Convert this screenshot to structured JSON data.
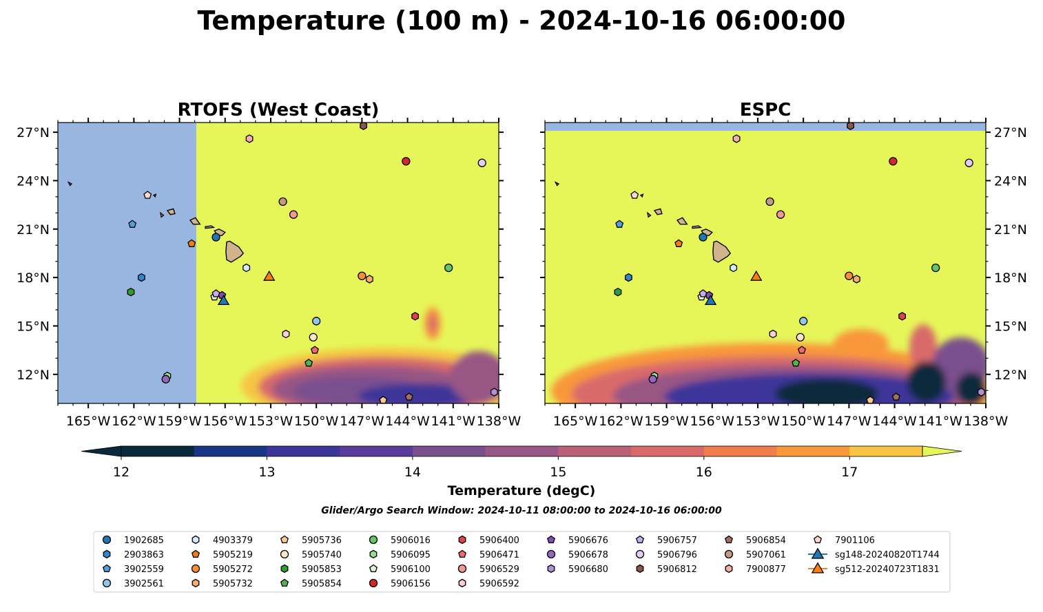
{
  "figure": {
    "title": "Temperature (100 m) - 2024-10-16 06:00:00",
    "search_window": "Glider/Argo Search Window: 2024-10-11 08:00:00 to 2024-10-16 06:00:00"
  },
  "colorbar": {
    "label": "Temperature (degC)",
    "levels": [
      12,
      12.5,
      13,
      13.5,
      14,
      14.5,
      15,
      15.5,
      16,
      16.5,
      17,
      17.5
    ],
    "colors": [
      "#092a3c",
      "#173686",
      "#3c3699",
      "#5a3d9a",
      "#7a4f8e",
      "#985784",
      "#bb6079",
      "#d86a6a",
      "#f07d4d",
      "#f9973b",
      "#f7c443",
      "#e6f659"
    ],
    "ticks": [
      "12",
      "13",
      "14",
      "15",
      "16",
      "17"
    ]
  },
  "colors": {
    "land": "#d2b48c",
    "nodata": "#98b6e0",
    "warm": "#e6f659"
  },
  "chart_data": [
    {
      "type": "heatmap",
      "panel": "left",
      "title": "RTOFS (West Coast)",
      "xlim": [
        -167,
        -138
      ],
      "ylim": [
        10.2,
        27.6
      ],
      "xticks": [
        "165°W",
        "162°W",
        "159°W",
        "156°W",
        "153°W",
        "150°W",
        "147°W",
        "144°W",
        "141°W",
        "138°W"
      ],
      "yticks": [
        "27°N",
        "24°N",
        "21°N",
        "18°N",
        "15°N",
        "12°N"
      ],
      "no_data_region": {
        "lon_max": -157.9
      },
      "cold_region": "south-east, below about 14°N"
    },
    {
      "type": "heatmap",
      "panel": "right",
      "title": "ESPC",
      "xlim": [
        -167,
        -138
      ],
      "ylim": [
        10.2,
        27.6
      ],
      "xticks": [
        "165°W",
        "162°W",
        "159°W",
        "156°W",
        "153°W",
        "150°W",
        "147°W",
        "144°W",
        "141°W",
        "138°W"
      ],
      "yticks": [
        "27°N",
        "24°N",
        "21°N",
        "18°N",
        "15°N",
        "12°N"
      ],
      "no_data_region": {
        "lat_min": 27.1
      },
      "cold_region": "south, below about 15°N"
    }
  ],
  "platforms": [
    {
      "id": "1902685",
      "marker": "circle",
      "color": "#1f77b4",
      "lon": -156.6,
      "lat": 20.5
    },
    {
      "id": "2903863",
      "marker": "hexagon",
      "color": "#2f86c8",
      "lon": -161.5,
      "lat": 18.0
    },
    {
      "id": "3902559",
      "marker": "pentagon",
      "color": "#4f9fdc",
      "lon": -162.1,
      "lat": 21.3
    },
    {
      "id": "3902561",
      "marker": "circle",
      "color": "#8fc8ec",
      "lon": -150.0,
      "lat": 15.3
    },
    {
      "id": "4903379",
      "marker": "hexagon",
      "color": "#d6ecf9",
      "lon": -154.6,
      "lat": 18.6
    },
    {
      "id": "5905219",
      "marker": "pentagon",
      "color": "#f57f0e",
      "lon": -158.2,
      "lat": 20.1
    },
    {
      "id": "5905272",
      "marker": "circle",
      "color": "#fb8f34",
      "lon": -147.0,
      "lat": 18.1
    },
    {
      "id": "5905732",
      "marker": "hexagon",
      "color": "#fbad6a",
      "lon": -146.5,
      "lat": 17.9
    },
    {
      "id": "5905736",
      "marker": "pentagon",
      "color": "#fdca8c",
      "lon": -145.6,
      "lat": 10.4
    },
    {
      "id": "5905740",
      "marker": "circle",
      "color": "#fde3c8",
      "lon": -150.2,
      "lat": 14.3
    },
    {
      "id": "5905853",
      "marker": "hexagon",
      "color": "#2ca02c",
      "lon": -162.2,
      "lat": 17.1
    },
    {
      "id": "5905854",
      "marker": "pentagon",
      "color": "#4cb84c",
      "lon": -150.5,
      "lat": 12.7
    },
    {
      "id": "5906016",
      "marker": "circle",
      "color": "#67c467",
      "lon": -141.3,
      "lat": 18.6
    },
    {
      "id": "5906095",
      "marker": "hexagon",
      "color": "#98df8a",
      "lon": -159.8,
      "lat": 11.9
    },
    {
      "id": "5906100",
      "marker": "pentagon",
      "color": "#d8f6cf",
      "lon": -156.7,
      "lat": 16.8
    },
    {
      "id": "5906156",
      "marker": "circle",
      "color": "#d62728",
      "lon": -144.1,
      "lat": 25.2
    },
    {
      "id": "5906400",
      "marker": "hexagon",
      "color": "#e0424a",
      "lon": -143.5,
      "lat": 15.6
    },
    {
      "id": "5906471",
      "marker": "pentagon",
      "color": "#ee6a6a",
      "lon": -150.1,
      "lat": 13.5
    },
    {
      "id": "5906529",
      "marker": "circle",
      "color": "#f49797",
      "lon": -151.5,
      "lat": 21.9
    },
    {
      "id": "5906592",
      "marker": "hexagon",
      "color": "#fcd0cf",
      "lon": -152.0,
      "lat": 14.5
    },
    {
      "id": "5906676",
      "marker": "pentagon",
      "color": "#7e4fb0",
      "lon": -156.2,
      "lat": 16.9
    },
    {
      "id": "5906678",
      "marker": "circle",
      "color": "#9467bd",
      "lon": -159.9,
      "lat": 11.7
    },
    {
      "id": "5906680",
      "marker": "hexagon",
      "color": "#b190d6",
      "lon": -138.3,
      "lat": 10.9
    },
    {
      "id": "5906757",
      "marker": "pentagon",
      "color": "#c9acec",
      "lon": -156.6,
      "lat": 17.0
    },
    {
      "id": "5906796",
      "marker": "circle",
      "color": "#e3cdf7",
      "lon": -139.1,
      "lat": 25.1
    },
    {
      "id": "5906812",
      "marker": "hexagon",
      "color": "#8c564b",
      "lon": -146.9,
      "lat": 27.4
    },
    {
      "id": "5906854",
      "marker": "pentagon",
      "color": "#a3705f",
      "lon": -143.9,
      "lat": 10.6
    },
    {
      "id": "5907061",
      "marker": "circle",
      "color": "#c49a86",
      "lon": -152.2,
      "lat": 22.7
    },
    {
      "id": "7900877",
      "marker": "hexagon",
      "color": "#f2b0a6",
      "lon": -154.4,
      "lat": 26.6
    },
    {
      "id": "7901106",
      "marker": "pentagon",
      "color": "#fcd6cf",
      "lon": -161.1,
      "lat": 23.1
    },
    {
      "id": "sg148-20240820T1744",
      "marker": "triangle",
      "color": "#1f77b4",
      "lon": -156.1,
      "lat": 16.6
    },
    {
      "id": "sg512-20240723T1831",
      "marker": "triangle",
      "color": "#ff7f0e",
      "lon": -153.1,
      "lat": 18.1
    }
  ],
  "islands": [
    [
      [
        -155.9,
        20.2
      ],
      [
        -155.7,
        20.25
      ],
      [
        -155.1,
        19.9
      ],
      [
        -154.8,
        19.5
      ],
      [
        -155.0,
        19.3
      ],
      [
        -155.6,
        18.95
      ],
      [
        -155.9,
        19.1
      ],
      [
        -155.95,
        19.6
      ],
      [
        -155.9,
        20.2
      ]
    ],
    [
      [
        -156.7,
        20.9
      ],
      [
        -156.4,
        21.0
      ],
      [
        -156.0,
        20.8
      ],
      [
        -156.2,
        20.6
      ],
      [
        -156.5,
        20.6
      ],
      [
        -156.7,
        20.9
      ]
    ],
    [
      [
        -157.3,
        21.15
      ],
      [
        -156.9,
        21.2
      ],
      [
        -156.75,
        21.1
      ],
      [
        -157.3,
        21.05
      ],
      [
        -157.3,
        21.15
      ]
    ],
    [
      [
        -158.3,
        21.55
      ],
      [
        -157.95,
        21.7
      ],
      [
        -157.65,
        21.3
      ],
      [
        -158.1,
        21.3
      ],
      [
        -158.3,
        21.55
      ]
    ],
    [
      [
        -159.8,
        22.15
      ],
      [
        -159.4,
        22.25
      ],
      [
        -159.3,
        21.95
      ],
      [
        -159.6,
        21.9
      ],
      [
        -159.8,
        22.15
      ]
    ],
    [
      [
        -160.25,
        22.0
      ],
      [
        -160.05,
        21.85
      ],
      [
        -160.2,
        21.75
      ],
      [
        -160.25,
        22.0
      ]
    ],
    [
      [
        -160.7,
        23.1
      ],
      [
        -160.55,
        23.15
      ],
      [
        -160.6,
        23.0
      ],
      [
        -160.7,
        23.1
      ]
    ],
    [
      [
        -166.3,
        23.9
      ],
      [
        -166.1,
        23.8
      ],
      [
        -166.2,
        23.7
      ],
      [
        -166.3,
        23.9
      ]
    ]
  ]
}
